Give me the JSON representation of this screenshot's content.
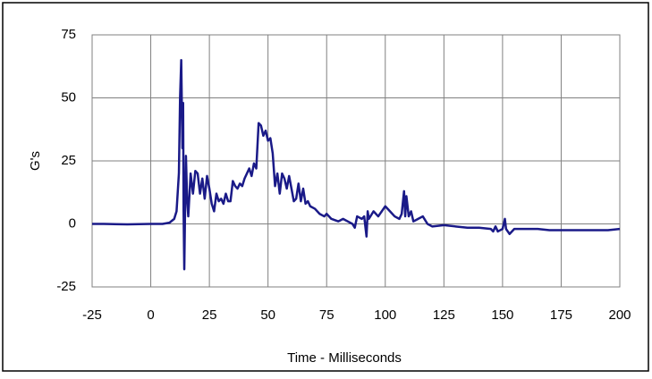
{
  "chart_data": {
    "type": "line",
    "x_label": "Time - Milliseconds",
    "y_label": "G's",
    "x": [
      -25,
      -20,
      -10,
      0,
      5,
      8,
      10,
      11,
      12,
      12.5,
      13,
      13.5,
      13.8,
      14,
      14.3,
      14.7,
      15,
      15.5,
      16,
      17,
      18,
      19,
      20,
      21,
      22,
      23,
      24,
      25,
      26,
      27,
      28,
      29,
      30,
      31,
      32,
      33,
      34,
      35,
      36,
      37,
      38,
      39,
      40,
      42,
      43,
      44,
      45,
      46,
      47,
      48,
      49,
      50,
      51,
      52,
      53,
      54,
      55,
      56,
      57,
      58,
      59,
      60,
      61,
      62,
      63,
      64,
      65,
      66,
      67,
      68,
      70,
      72,
      74,
      75,
      77,
      80,
      82,
      84,
      86,
      87,
      88,
      90,
      91,
      92,
      92.5,
      93,
      95,
      97,
      100,
      102,
      104,
      106,
      107,
      108,
      108.5,
      109,
      110,
      111,
      112,
      114,
      116,
      118,
      120,
      125,
      130,
      135,
      140,
      145,
      146,
      147,
      148,
      150,
      151,
      151.5,
      153,
      155,
      160,
      165,
      170,
      175,
      180,
      185,
      190,
      195,
      200
    ],
    "series": [
      {
        "name": "G's",
        "color": "#1a1a88",
        "values": [
          0,
          0,
          -0.2,
          0,
          0,
          0.5,
          2,
          5,
          20,
          50,
          65,
          30,
          48,
          5,
          -18,
          10,
          27,
          10,
          3,
          20,
          12,
          21,
          20,
          12,
          18,
          10,
          19,
          14,
          8,
          5,
          12,
          9,
          10,
          8,
          12,
          9,
          9,
          17,
          15,
          14,
          16,
          15,
          18,
          22,
          19,
          24,
          22,
          40,
          39,
          35,
          37,
          33,
          34,
          28,
          15,
          20,
          12,
          20,
          18,
          14,
          19,
          14,
          9,
          10,
          16,
          9,
          14,
          8,
          9,
          7,
          6,
          4,
          3,
          4,
          2,
          1,
          2,
          1,
          0,
          -1.5,
          3,
          2,
          3,
          -5,
          5,
          2,
          5,
          3,
          7,
          5,
          3,
          2,
          4,
          13,
          3,
          11,
          3,
          5,
          1,
          2,
          3,
          0,
          -1,
          -0.5,
          -1,
          -1.5,
          -1.5,
          -2,
          -3,
          -1,
          -3,
          -2,
          2,
          -2,
          -4,
          -2,
          -2,
          -2,
          -2.5,
          -2.5,
          -2.5,
          -2.5,
          -2.5,
          -2.5,
          -2
        ]
      }
    ],
    "xlim": [
      -25,
      200
    ],
    "xticks": [
      -25,
      0,
      25,
      50,
      75,
      100,
      125,
      150,
      175,
      200
    ],
    "ylim": [
      -25,
      75
    ],
    "yticks": [
      -25,
      0,
      25,
      50,
      75
    ],
    "grid": true
  }
}
